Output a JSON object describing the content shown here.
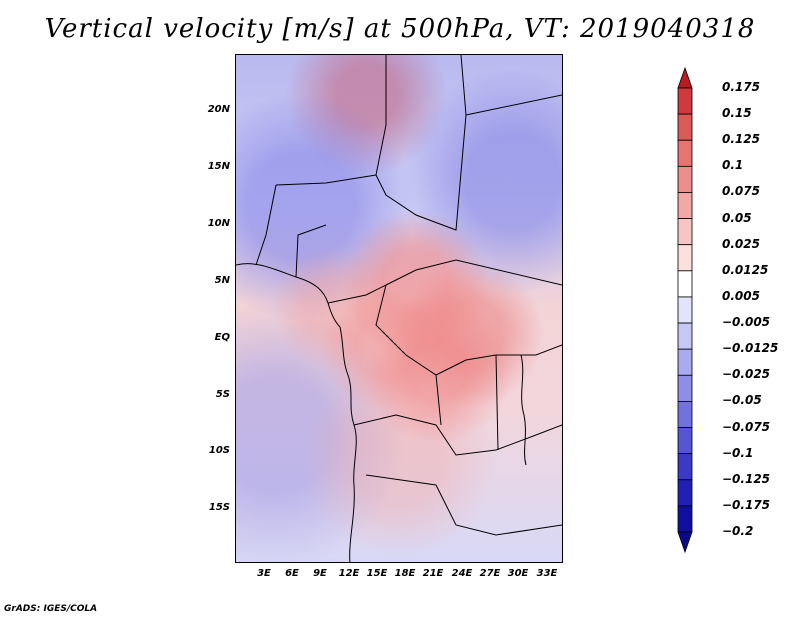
{
  "title": "Vertical velocity [m/s] at 500hPa, VT: 2019040318",
  "credit": "GrADS: IGES/COLA",
  "map": {
    "lat_labels": [
      "20N",
      "15N",
      "10N",
      "5N",
      "EQ",
      "5S",
      "10S",
      "15S"
    ],
    "lon_labels": [
      "3E",
      "6E",
      "9E",
      "12E",
      "15E",
      "18E",
      "21E",
      "24E",
      "27E",
      "30E",
      "33E"
    ]
  },
  "colorbar": {
    "levels": [
      "0.175",
      "0.15",
      "0.125",
      "0.1",
      "0.075",
      "0.05",
      "0.025",
      "0.0125",
      "0.005",
      "−0.005",
      "−0.0125",
      "−0.025",
      "−0.05",
      "−0.075",
      "−0.1",
      "−0.125",
      "−0.175",
      "−0.2"
    ],
    "colors": [
      "#b81c22",
      "#cf3a3e",
      "#dc5a58",
      "#e67471",
      "#ec8e8b",
      "#f2a8a6",
      "#f7c5c4",
      "#fbe0df",
      "#ffffff",
      "#e3e3fb",
      "#c7c7f5",
      "#aaaaee",
      "#8e8ee6",
      "#7272de",
      "#5656d3",
      "#3a3ac6",
      "#2020b4",
      "#1010a0",
      "#0a0a88"
    ]
  }
}
